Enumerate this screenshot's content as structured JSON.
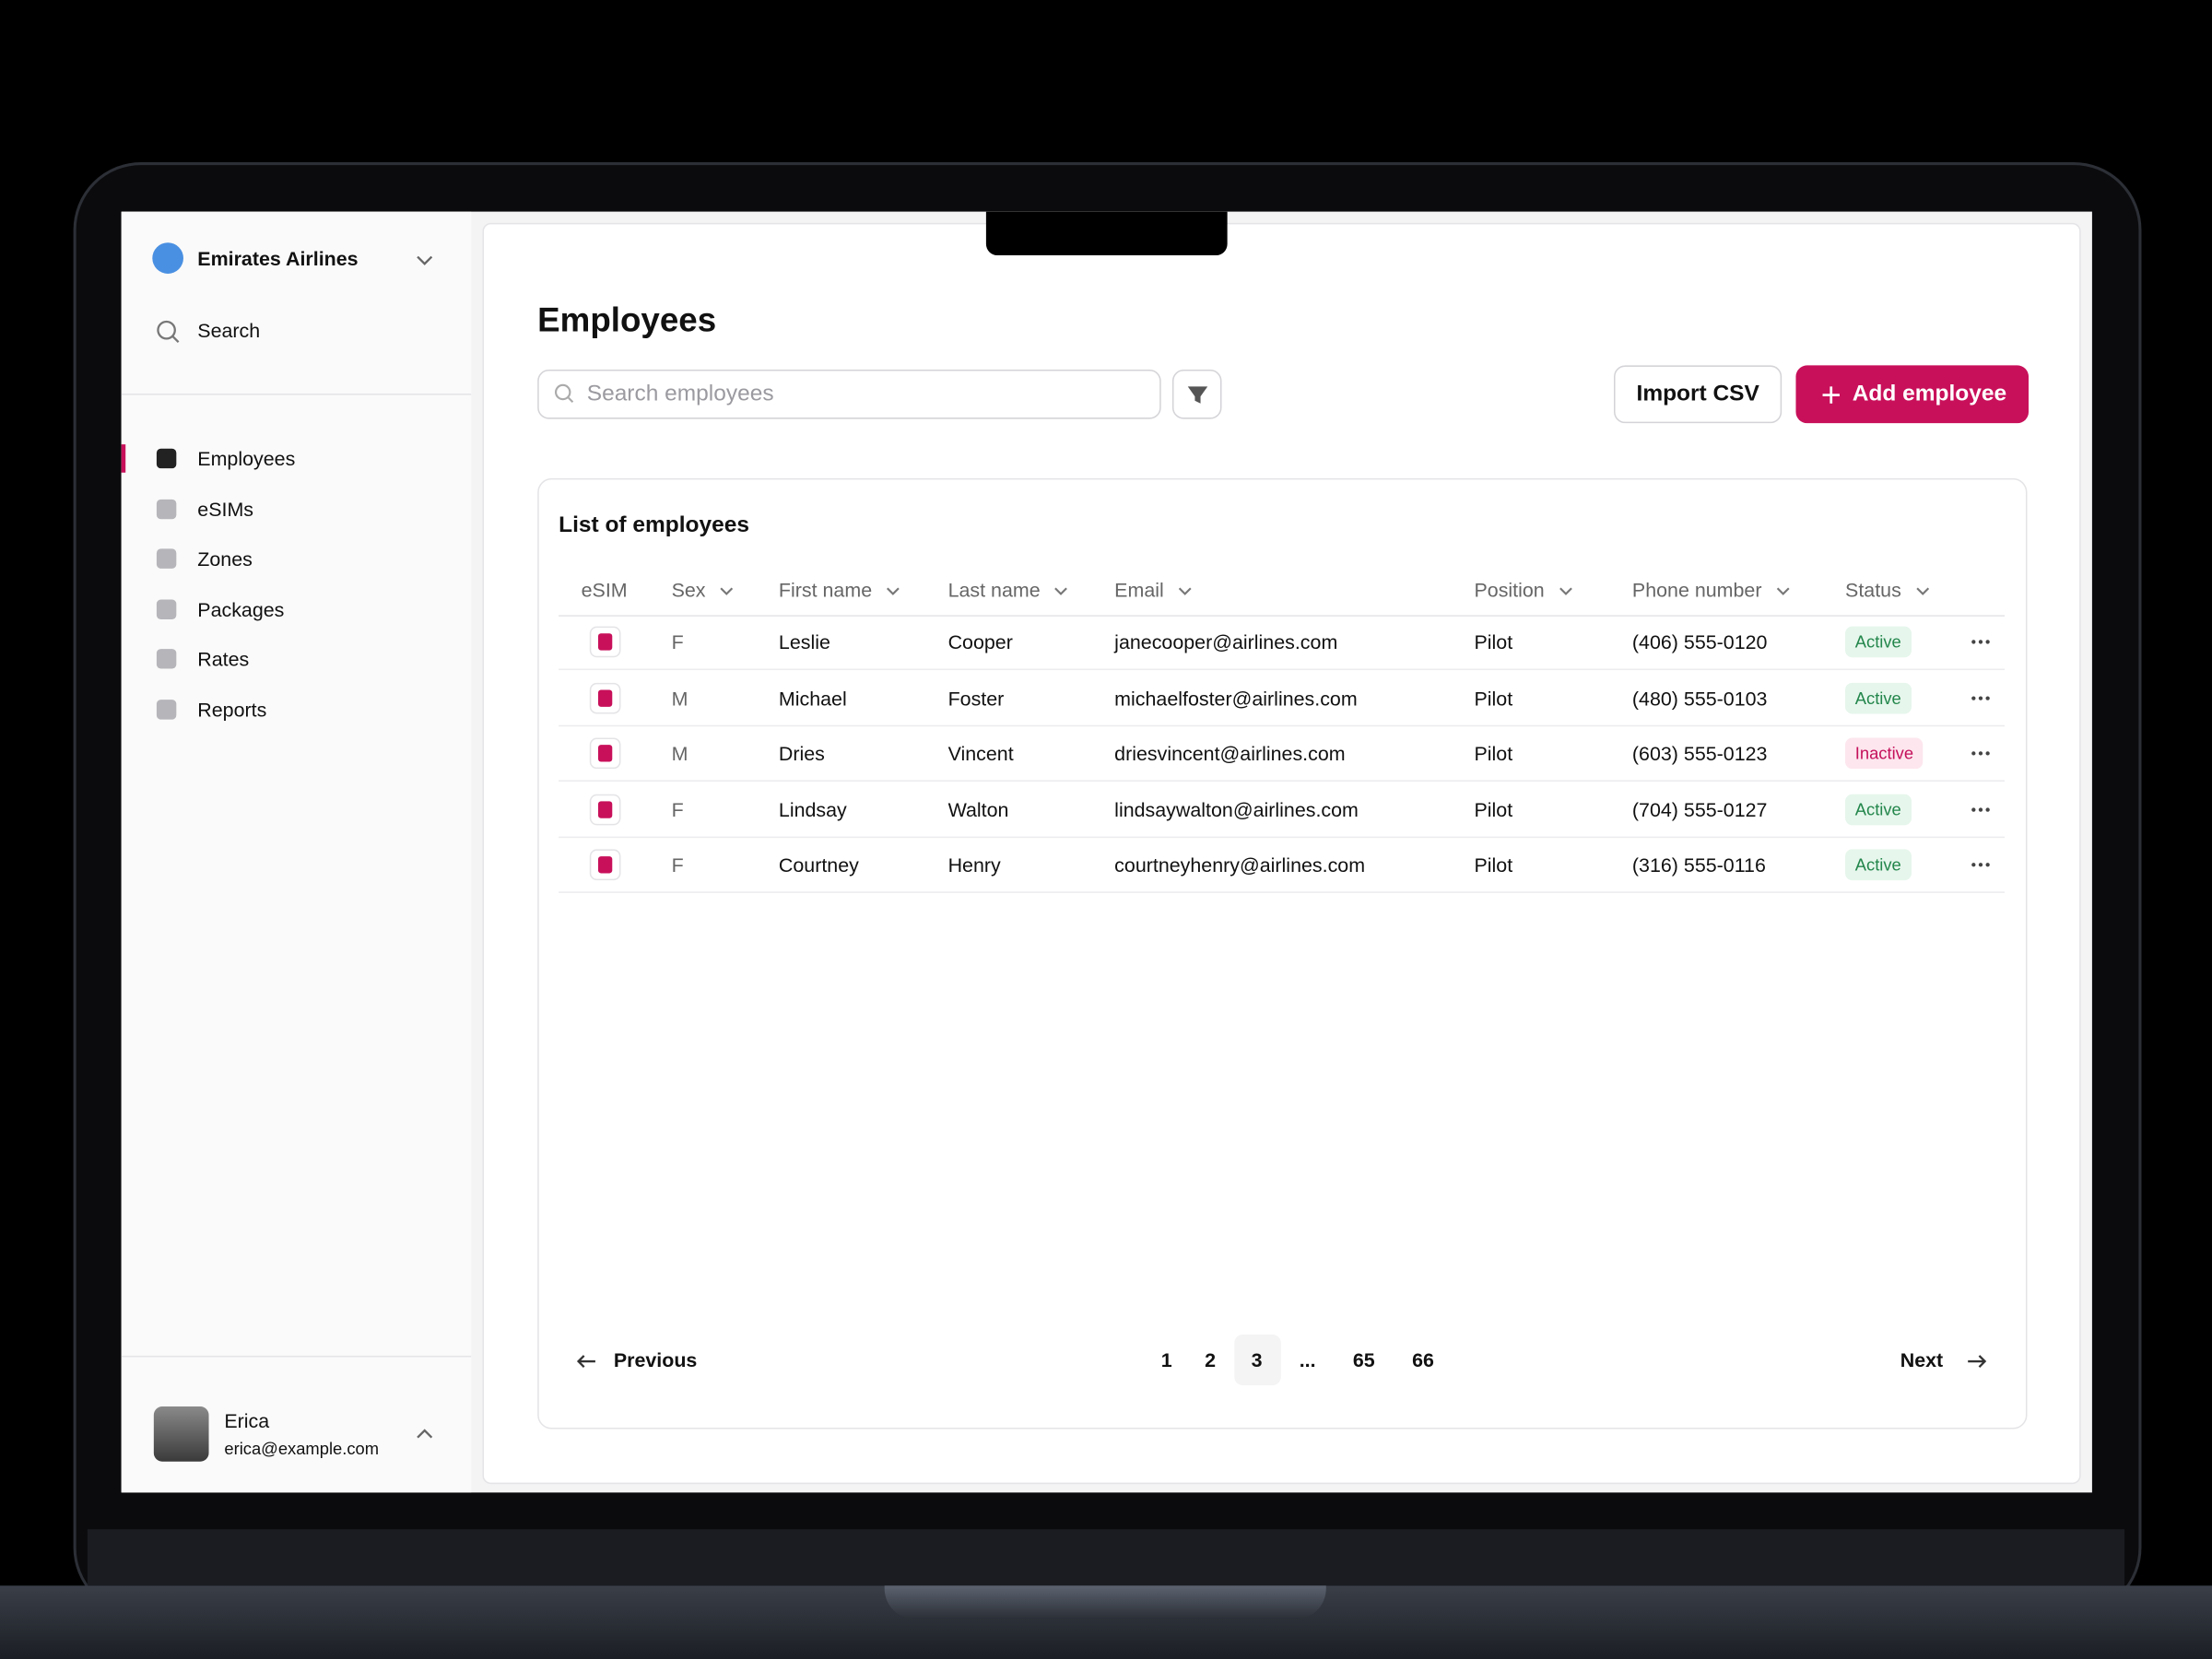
{
  "sidebar": {
    "org": "Emirates Airlines",
    "search": "Search",
    "nav": [
      "Employees",
      "eSIMs",
      "Zones",
      "Packages",
      "Rates",
      "Reports"
    ],
    "user": {
      "name": "Erica",
      "email": "erica@example.com"
    }
  },
  "header": {
    "title": "Employees",
    "search_placeholder": "Search employees",
    "import": "Import CSV",
    "add": "Add employee"
  },
  "table": {
    "title": "List of employees",
    "columns": [
      "eSIM",
      "Sex",
      "First name",
      "Last name",
      "Email",
      "Position",
      "Phone number",
      "Status"
    ],
    "rows": [
      [
        "F",
        "Leslie",
        "Cooper",
        "janecooper@airlines.com",
        "Pilot",
        "(406) 555-0120",
        "Active"
      ],
      [
        "M",
        "Michael",
        "Foster",
        "michaelfoster@airlines.com",
        "Pilot",
        "(480) 555-0103",
        "Active"
      ],
      [
        "M",
        "Dries",
        "Vincent",
        "driesvincent@airlines.com",
        "Pilot",
        "(603) 555-0123",
        "Inactive"
      ],
      [
        "F",
        "Lindsay",
        "Walton",
        "lindsaywalton@airlines.com",
        "Pilot",
        "(704) 555-0127",
        "Active"
      ],
      [
        "F",
        "Courtney",
        "Henry",
        "courtneyhenry@airlines.com",
        "Pilot",
        "(316) 555-0116",
        "Active"
      ]
    ],
    "badge_colors": {
      "Active": {
        "bg": "#e6f6ec",
        "fg": "#23864b"
      },
      "Inactive": {
        "bg": "#fde6ee",
        "fg": "#c4105a"
      }
    }
  },
  "pagination": {
    "previous": "Previous",
    "pages": [
      "1",
      "2",
      "3",
      "...",
      "65",
      "66"
    ],
    "next": "Next"
  }
}
